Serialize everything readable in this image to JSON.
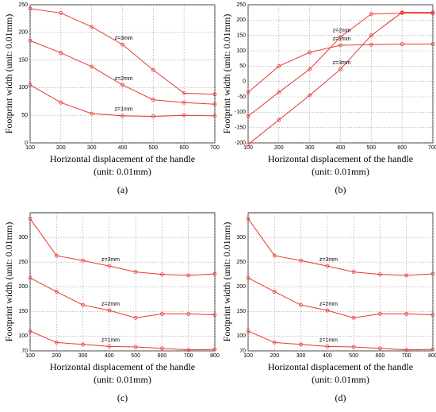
{
  "chart_data": [
    {
      "type": "line",
      "panel_label": "(a)",
      "ylabel": "Footprint width (unit: 0.01mm)",
      "xlabel": [
        "Horizontal displacement of the handle",
        "(unit: 0.01mm)"
      ],
      "x": [
        100,
        200,
        300,
        400,
        500,
        600,
        700
      ],
      "xlim": [
        100,
        700
      ],
      "xticks": [
        100,
        200,
        300,
        400,
        500,
        600,
        700
      ],
      "ylim": [
        0,
        250
      ],
      "yticks": [
        0,
        50,
        100,
        150,
        200,
        250
      ],
      "grid": true,
      "series": [
        {
          "name": "z=3mm",
          "color": "#e8382f",
          "values": [
            243,
            235,
            210,
            178,
            132,
            90,
            88
          ]
        },
        {
          "name": "z=2mm",
          "color": "#e8382f",
          "values": [
            185,
            163,
            138,
            105,
            78,
            73,
            70
          ]
        },
        {
          "name": "z=1mm",
          "color": "#e8382f",
          "values": [
            105,
            73,
            53,
            49,
            48,
            50,
            49
          ]
        }
      ]
    },
    {
      "type": "line",
      "panel_label": "(b)",
      "ylabel": "Footprint width (unit: 0.01mm)",
      "xlabel": [
        "Horizontal displacement of the handle",
        "(unit: 0.01mm)"
      ],
      "x": [
        100,
        200,
        300,
        400,
        500,
        600,
        700
      ],
      "xlim": [
        100,
        700
      ],
      "xticks": [
        100,
        200,
        300,
        400,
        500,
        600,
        700
      ],
      "ylim": [
        -200,
        250
      ],
      "yticks": [
        -200,
        -150,
        -100,
        -50,
        0,
        50,
        100,
        150,
        200,
        250
      ],
      "grid": true,
      "series": [
        {
          "name": "z=1mm",
          "color": "#e8382f",
          "values": [
            -35,
            50,
            95,
            118,
            120,
            122,
            122
          ]
        },
        {
          "name": "z=2mm",
          "color": "#e8382f",
          "values": [
            -113,
            -35,
            40,
            145,
            220,
            223,
            222
          ]
        },
        {
          "name": "z=3mm",
          "color": "#e8382f",
          "values": [
            -205,
            -125,
            -45,
            40,
            150,
            225,
            225
          ]
        }
      ]
    },
    {
      "type": "line",
      "panel_label": "(c)",
      "ylabel": "Footprint width (unit: 0.01mm)",
      "xlabel": [
        "Horizontal displacement of the handle",
        "(unit: 0.01mm)"
      ],
      "x": [
        100,
        200,
        300,
        400,
        500,
        600,
        700,
        800
      ],
      "xlim": [
        100,
        800
      ],
      "xticks": [
        100,
        200,
        300,
        400,
        500,
        600,
        700,
        800
      ],
      "ylim": [
        70,
        350
      ],
      "yticks": [
        70,
        100,
        150,
        200,
        250,
        300
      ],
      "grid": true,
      "series": [
        {
          "name": "z=3mm",
          "color": "#e8382f",
          "values": [
            338,
            263,
            253,
            242,
            230,
            225,
            223,
            226
          ]
        },
        {
          "name": "z=2mm",
          "color": "#e8382f",
          "values": [
            218,
            190,
            163,
            152,
            137,
            145,
            145,
            143
          ]
        },
        {
          "name": "z=1mm",
          "color": "#e8382f",
          "values": [
            110,
            87,
            83,
            79,
            78,
            75,
            72,
            73
          ]
        }
      ]
    },
    {
      "type": "line",
      "panel_label": "(d)",
      "ylabel": "Footprint width (unit: 0.01mm)",
      "xlabel": [
        "Horizontal displacement of the handle",
        "(unit: 0.01mm)"
      ],
      "x": [
        100,
        200,
        300,
        400,
        500,
        600,
        700,
        800
      ],
      "xlim": [
        100,
        800
      ],
      "xticks": [
        100,
        200,
        300,
        400,
        500,
        600,
        700,
        800
      ],
      "ylim": [
        70,
        350
      ],
      "yticks": [
        70,
        100,
        150,
        200,
        250,
        300
      ],
      "grid": true,
      "series": [
        {
          "name": "z=3mm",
          "color": "#e8382f",
          "values": [
            338,
            263,
            253,
            242,
            230,
            225,
            223,
            226
          ]
        },
        {
          "name": "z=2mm",
          "color": "#e8382f",
          "values": [
            218,
            190,
            163,
            152,
            137,
            145,
            145,
            143
          ]
        },
        {
          "name": "z=1mm",
          "color": "#e8382f",
          "values": [
            110,
            87,
            83,
            79,
            78,
            75,
            72,
            73
          ]
        }
      ]
    }
  ]
}
